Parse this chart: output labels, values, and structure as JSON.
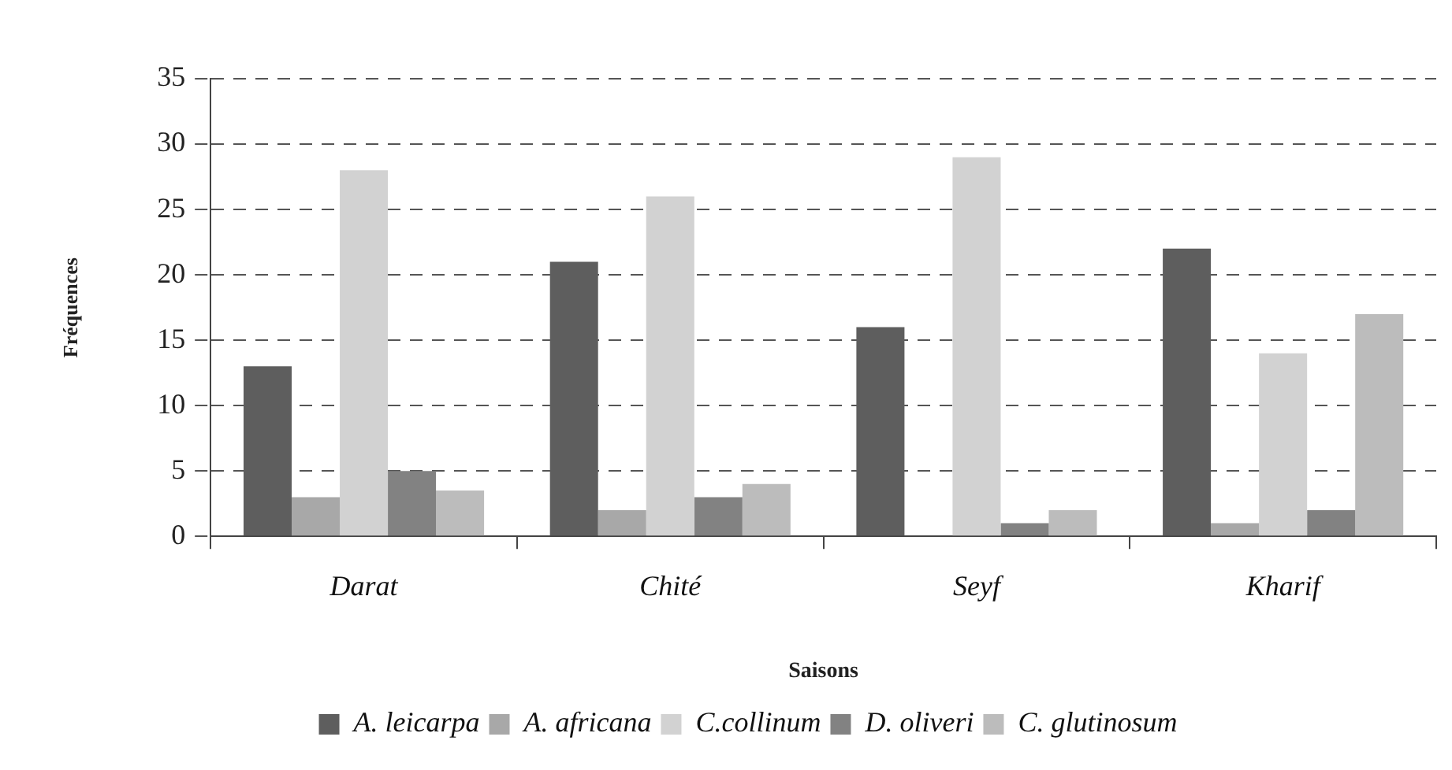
{
  "chart_data": {
    "type": "bar",
    "xlabel": "Saisons",
    "ylabel": "Fréquences",
    "categories": [
      "Darat",
      "Chité",
      "Seyf",
      "Kharif"
    ],
    "series": [
      {
        "name": "A. leicarpa",
        "color": "#5e5e5e",
        "values": [
          13,
          21,
          16,
          22
        ]
      },
      {
        "name": "A. africana",
        "color": "#a8a8a8",
        "values": [
          3,
          2,
          null,
          1
        ]
      },
      {
        "name": "C.collinum",
        "color": "#d2d2d2",
        "values": [
          28,
          26,
          29,
          14
        ]
      },
      {
        "name": "D. oliveri",
        "color": "#828282",
        "values": [
          5,
          3,
          1,
          2
        ]
      },
      {
        "name": "C. glutinosum",
        "color": "#bcbcbc",
        "values": [
          3.5,
          4,
          2,
          17
        ]
      }
    ],
    "ylim": [
      0,
      35
    ],
    "yticks": [
      0,
      5,
      10,
      15,
      20,
      25,
      30,
      35
    ],
    "grid": "y",
    "legend": "bottom"
  }
}
